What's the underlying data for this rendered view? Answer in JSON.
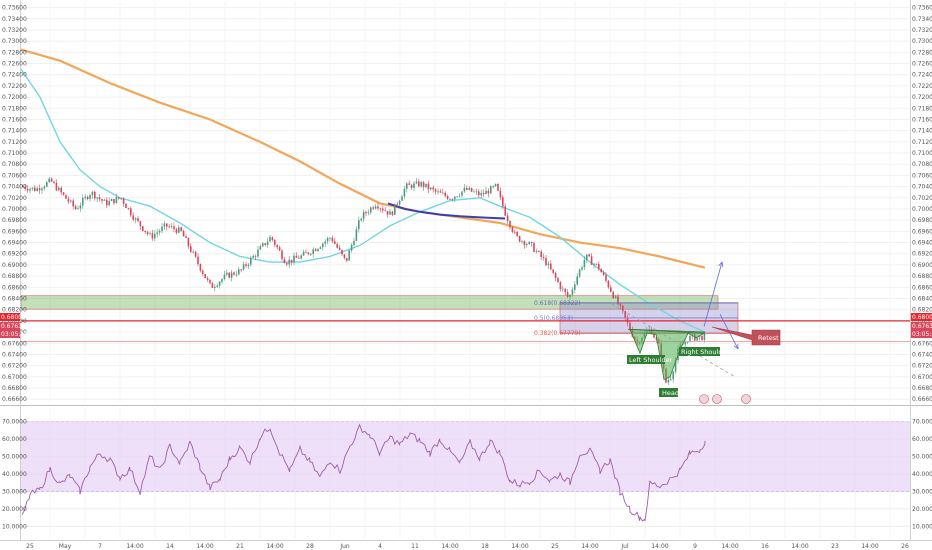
{
  "chart_data": {
    "type": "candlestick",
    "price_ticks": [
      "0.73600",
      "0.73400",
      "0.73200",
      "0.73000",
      "0.72800",
      "0.72600",
      "0.72400",
      "0.72200",
      "0.72000",
      "0.71800",
      "0.71600",
      "0.71400",
      "0.71200",
      "0.71000",
      "0.70800",
      "0.70600",
      "0.70400",
      "0.70200",
      "0.70000",
      "0.69800",
      "0.69600",
      "0.69400",
      "0.69200",
      "0.69000",
      "0.68800",
      "0.68600",
      "0.68400",
      "0.68200",
      "0.68000",
      "0.67800",
      "0.67600",
      "0.67400",
      "0.67200",
      "0.67000",
      "0.66800",
      "0.66600"
    ],
    "price_range": [
      0.6655,
      0.737
    ],
    "markers": {
      "current_price": "0.67633",
      "countdown": "03:05:44",
      "level_line": "0.68000"
    },
    "time_labels": [
      "25",
      "May",
      "7",
      "14:00",
      "14",
      "14:00",
      "21",
      "14:00",
      "28",
      "Jun",
      "4",
      "11",
      "14:00",
      "18",
      "14:00",
      "25",
      "14:00",
      "Jul",
      "14:00",
      "9",
      "14:00",
      "16",
      "14:00",
      "23",
      "14:00",
      "26"
    ],
    "rsi_ticks": [
      "70.0000",
      "60.0000",
      "50.0000",
      "40.0000",
      "30.0000",
      "20.0000",
      "10.0000"
    ],
    "rsi_band": [
      30,
      70
    ],
    "fib_levels": [
      {
        "label": "0.618(0.68322)",
        "value": 0.68322,
        "color": "#6b6ab8"
      },
      {
        "label": "0.5(0.68053)",
        "value": 0.68053,
        "color": "#7d7dc8"
      },
      {
        "label": "0.382(0.67779)",
        "value": 0.67779,
        "color": "#e05a5a"
      }
    ],
    "zones": [
      {
        "name": "support",
        "from": 0.6821,
        "to": 0.6845,
        "color": "#5fae46"
      },
      {
        "name": "fib",
        "from": 0.6778,
        "to": 0.6832,
        "color": "#8a7fc9"
      }
    ],
    "pattern_labels": {
      "left_shoulder": "Left Shoulder",
      "head": "Head",
      "right_shoulder": "Right Shoulder",
      "retest": "Retest"
    },
    "colors": {
      "up": "#4a9c7c",
      "down": "#d9455a",
      "ema_slow": "#f2a65a",
      "ema_fast": "#72d6e0",
      "ema_segment": "#3c3fb0",
      "rsi": "#a35ca8",
      "level": "#e8252f"
    }
  }
}
